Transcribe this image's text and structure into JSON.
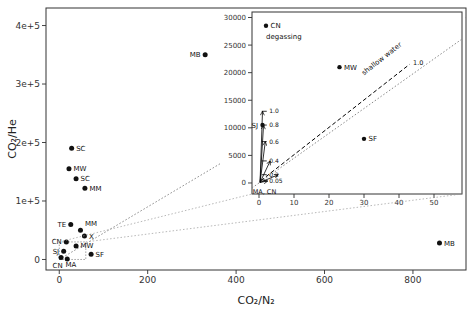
{
  "chart_data": [
    {
      "type": "scatter",
      "xlabel": "CO₂/N₂",
      "ylabel": "CO₂/He",
      "x": [
        330,
        28,
        22,
        38,
        58,
        26,
        48,
        57,
        16,
        38,
        10,
        72,
        4,
        18,
        860
      ],
      "values": [
        350000,
        190000,
        155000,
        138000,
        122000,
        60000,
        50000,
        40000,
        30000,
        23000,
        14000,
        9000,
        3500,
        1000,
        28000
      ],
      "labels": [
        "MB",
        "SC",
        "MW",
        "SC",
        "MM",
        "TE",
        "MM",
        "X",
        "CN",
        "MW",
        "SJ",
        "SF",
        "MA",
        "CN",
        "MB"
      ],
      "color": "#111111",
      "marker": "circle",
      "xlim": [
        -30,
        920
      ],
      "ylim": [
        -18000,
        430000
      ],
      "xticks": [
        0,
        200,
        400,
        600,
        800
      ],
      "yticks": [
        0,
        {
          "value": 100000,
          "label": "1e+5"
        },
        {
          "value": 200000,
          "label": "2e+5"
        },
        {
          "value": 300000,
          "label": "3e+5"
        },
        {
          "value": 400000,
          "label": "4e+5"
        }
      ],
      "grid": false,
      "reference_line": {
        "x": [
          0,
          920
        ],
        "values": [
          0,
          414000
        ]
      },
      "zoom_box": {
        "x": [
          0,
          60
        ],
        "values": [
          0,
          30000
        ]
      }
    },
    {
      "type": "scatter",
      "x": [
        2,
        23,
        1,
        30
      ],
      "values": [
        28500,
        21000,
        10500,
        8000
      ],
      "labels": [
        "CN",
        "MW",
        "SJ",
        "SF"
      ],
      "color": "#111111",
      "marker": "circle",
      "xlim": [
        -2,
        58
      ],
      "ylim": [
        -2000,
        31000
      ],
      "xticks": [
        0,
        10,
        20,
        30,
        40,
        50
      ],
      "yticks": [
        0,
        5000,
        10000,
        15000,
        20000,
        25000,
        30000
      ],
      "grid": false,
      "reference_line": {
        "x": [
          -2,
          58
        ],
        "values": [
          -900,
          26100
        ]
      },
      "shallow_water_line": {
        "label": "shallow water",
        "label_x": 30,
        "label_y": 19500,
        "x": [
          0.5,
          43
        ],
        "values": [
          400,
          21500
        ]
      },
      "degassing": {
        "label": "degassing",
        "label_x": 2.0,
        "label_y": 26500,
        "origin_x": 0.3,
        "origin_y": 100,
        "tick_x": 1.5,
        "labels": [
          "1.0",
          "0.8",
          "0.6",
          "0.4",
          "0.2",
          "0.05"
        ],
        "x": [
          1.0,
          1.3,
          1.8,
          3.2,
          5.5,
          2.5
        ],
        "values": [
          13000,
          10500,
          7500,
          4000,
          1500,
          350
        ]
      },
      "annotations": [
        {
          "text": "1.0",
          "x": 44,
          "y": 21800
        },
        {
          "text": "MA, CN",
          "x": -1.8,
          "y": -1600
        }
      ]
    }
  ]
}
